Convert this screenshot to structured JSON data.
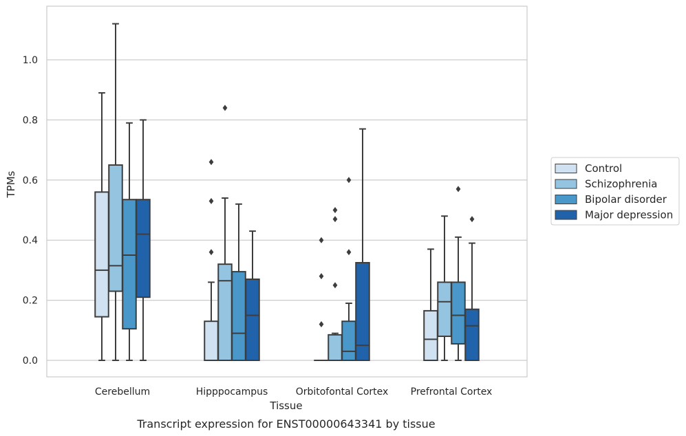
{
  "caption": "Transcript expression for ENST00000643341 by tissue",
  "chart_data": {
    "type": "box",
    "xlabel": "Tissue",
    "ylabel": "TPMs",
    "ylim": [
      -0.055,
      1.18
    ],
    "yticks": [
      0.0,
      0.2,
      0.4,
      0.6,
      0.8,
      1.0
    ],
    "ytick_labels": [
      "0.0",
      "0.2",
      "0.4",
      "0.6",
      "0.8",
      "1.0"
    ],
    "grid": "horizontal",
    "legend_position": "right",
    "categories": [
      "Cerebellum",
      "Hipppocampus",
      "Orbitofontal Cortex",
      "Prefrontal Cortex"
    ],
    "series": [
      {
        "name": "Control",
        "color": "#d0e1f2",
        "boxes": [
          {
            "whislo": 0.0,
            "q1": 0.145,
            "med": 0.3,
            "q3": 0.56,
            "whishi": 0.89,
            "fliers": []
          },
          {
            "whislo": 0.0,
            "q1": 0.0,
            "med": 0.0,
            "q3": 0.13,
            "whishi": 0.26,
            "fliers": [
              0.36,
              0.53,
              0.66
            ]
          },
          {
            "whislo": 0.0,
            "q1": 0.0,
            "med": 0.0,
            "q3": 0.0,
            "whishi": 0.0,
            "fliers": [
              0.12,
              0.28,
              0.4
            ]
          },
          {
            "whislo": 0.0,
            "q1": 0.0,
            "med": 0.07,
            "q3": 0.165,
            "whishi": 0.37,
            "fliers": []
          }
        ]
      },
      {
        "name": "Schizophrenia",
        "color": "#94c4df",
        "boxes": [
          {
            "whislo": 0.0,
            "q1": 0.23,
            "med": 0.315,
            "q3": 0.65,
            "whishi": 1.12,
            "fliers": []
          },
          {
            "whislo": 0.0,
            "q1": 0.0,
            "med": 0.265,
            "q3": 0.32,
            "whishi": 0.54,
            "fliers": [
              0.84
            ]
          },
          {
            "whislo": 0.0,
            "q1": 0.0,
            "med": 0.0,
            "q3": 0.085,
            "whishi": 0.09,
            "fliers": [
              0.25,
              0.47,
              0.5
            ]
          },
          {
            "whislo": 0.0,
            "q1": 0.08,
            "med": 0.195,
            "q3": 0.26,
            "whishi": 0.48,
            "fliers": []
          }
        ]
      },
      {
        "name": "Bipolar disorder",
        "color": "#4a98c9",
        "boxes": [
          {
            "whislo": 0.0,
            "q1": 0.105,
            "med": 0.35,
            "q3": 0.535,
            "whishi": 0.79,
            "fliers": []
          },
          {
            "whislo": 0.0,
            "q1": 0.0,
            "med": 0.09,
            "q3": 0.295,
            "whishi": 0.52,
            "fliers": []
          },
          {
            "whislo": 0.0,
            "q1": 0.0,
            "med": 0.03,
            "q3": 0.13,
            "whishi": 0.19,
            "fliers": [
              0.36,
              0.6
            ]
          },
          {
            "whislo": 0.0,
            "q1": 0.055,
            "med": 0.15,
            "q3": 0.26,
            "whishi": 0.41,
            "fliers": [
              0.57
            ]
          }
        ]
      },
      {
        "name": "Major depression",
        "color": "#2163aa",
        "boxes": [
          {
            "whislo": 0.0,
            "q1": 0.21,
            "med": 0.42,
            "q3": 0.535,
            "whishi": 0.8,
            "fliers": []
          },
          {
            "whislo": 0.0,
            "q1": 0.0,
            "med": 0.15,
            "q3": 0.27,
            "whishi": 0.43,
            "fliers": []
          },
          {
            "whislo": 0.0,
            "q1": 0.0,
            "med": 0.05,
            "q3": 0.325,
            "whishi": 0.77,
            "fliers": []
          },
          {
            "whislo": 0.0,
            "q1": 0.0,
            "med": 0.115,
            "q3": 0.17,
            "whishi": 0.39,
            "fliers": [
              0.47
            ]
          }
        ]
      }
    ]
  }
}
